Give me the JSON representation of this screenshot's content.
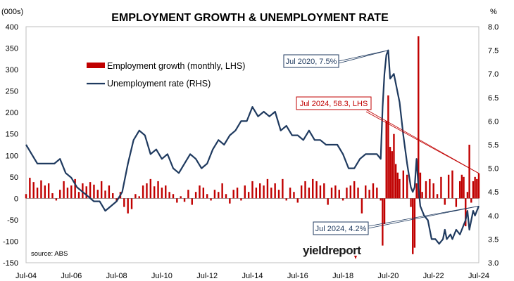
{
  "chart_data": {
    "type": "bar+line",
    "title": "EMPLOYMENT GROWTH & UNEMPLOYMENT RATE",
    "left_unit": "(000s)",
    "right_unit": "%",
    "ylim_left": [
      -150,
      400
    ],
    "ylim_right": [
      3.0,
      8.0
    ],
    "left_ticks": [
      "400",
      "350",
      "300",
      "250",
      "200",
      "150",
      "100",
      "50",
      "0",
      "-50",
      "-100",
      "-150"
    ],
    "right_ticks": [
      "8.0",
      "7.5",
      "7.0",
      "6.5",
      "6.0",
      "5.5",
      "5.0",
      "4.5",
      "4.0",
      "3.5",
      "3.0"
    ],
    "x_ticks": [
      "Jul-04",
      "Jul-06",
      "Jul-08",
      "Jul-10",
      "Jul-12",
      "Jul-14",
      "Jul-16",
      "Jul-18",
      "Jul-20",
      "Jul-22",
      "Jul-24"
    ],
    "x_range": [
      "Jul-04",
      "Jul-24"
    ],
    "grid": false,
    "legend_position": "top-left",
    "series": [
      {
        "name": "Employment growth (monthly, LHS)",
        "type": "bar",
        "axis": "left",
        "color": "#c00000",
        "points": [
          [
            "Jul-04",
            10
          ],
          [
            "Sep-04",
            48
          ],
          [
            "Nov-04",
            38
          ],
          [
            "Jan-05",
            25
          ],
          [
            "Mar-05",
            42
          ],
          [
            "May-05",
            30
          ],
          [
            "Jul-05",
            35
          ],
          [
            "Sep-05",
            12
          ],
          [
            "Nov-05",
            -5
          ],
          [
            "Jan-06",
            20
          ],
          [
            "Mar-06",
            40
          ],
          [
            "May-06",
            25
          ],
          [
            "Jul-06",
            30
          ],
          [
            "Sep-06",
            45
          ],
          [
            "Nov-06",
            15
          ],
          [
            "Jan-07",
            35
          ],
          [
            "Mar-07",
            28
          ],
          [
            "May-07",
            38
          ],
          [
            "Jul-07",
            32
          ],
          [
            "Sep-07",
            20
          ],
          [
            "Nov-07",
            40
          ],
          [
            "Jan-08",
            18
          ],
          [
            "Mar-08",
            30
          ],
          [
            "May-08",
            12
          ],
          [
            "Jul-08",
            -8
          ],
          [
            "Sep-08",
            15
          ],
          [
            "Nov-08",
            -20
          ],
          [
            "Jan-09",
            -35
          ],
          [
            "Mar-09",
            -25
          ],
          [
            "May-09",
            10
          ],
          [
            "Jul-09",
            5
          ],
          [
            "Sep-09",
            30
          ],
          [
            "Nov-09",
            35
          ],
          [
            "Jan-10",
            45
          ],
          [
            "Mar-10",
            28
          ],
          [
            "May-10",
            40
          ],
          [
            "Jul-10",
            25
          ],
          [
            "Sep-10",
            30
          ],
          [
            "Nov-10",
            15
          ],
          [
            "Jan-11",
            10
          ],
          [
            "Mar-11",
            -10
          ],
          [
            "May-11",
            5
          ],
          [
            "Jul-11",
            -8
          ],
          [
            "Sep-11",
            20
          ],
          [
            "Nov-11",
            -15
          ],
          [
            "Jan-12",
            15
          ],
          [
            "Mar-12",
            30
          ],
          [
            "May-12",
            25
          ],
          [
            "Jul-12",
            10
          ],
          [
            "Sep-12",
            -5
          ],
          [
            "Nov-12",
            20
          ],
          [
            "Jan-13",
            15
          ],
          [
            "Mar-13",
            35
          ],
          [
            "May-13",
            10
          ],
          [
            "Jul-13",
            -12
          ],
          [
            "Sep-13",
            20
          ],
          [
            "Nov-13",
            25
          ],
          [
            "Jan-14",
            -5
          ],
          [
            "Mar-14",
            30
          ],
          [
            "May-14",
            15
          ],
          [
            "Jul-14",
            40
          ],
          [
            "Sep-14",
            25
          ],
          [
            "Nov-14",
            35
          ],
          [
            "Jan-15",
            30
          ],
          [
            "Mar-15",
            45
          ],
          [
            "May-15",
            25
          ],
          [
            "Jul-15",
            35
          ],
          [
            "Sep-15",
            20
          ],
          [
            "Nov-15",
            45
          ],
          [
            "Jan-16",
            -5
          ],
          [
            "Mar-16",
            25
          ],
          [
            "May-16",
            15
          ],
          [
            "Jul-16",
            -10
          ],
          [
            "Sep-16",
            30
          ],
          [
            "Nov-16",
            40
          ],
          [
            "Jan-17",
            25
          ],
          [
            "Mar-17",
            45
          ],
          [
            "May-17",
            40
          ],
          [
            "Jul-17",
            30
          ],
          [
            "Sep-17",
            35
          ],
          [
            "Nov-17",
            -15
          ],
          [
            "Jan-18",
            25
          ],
          [
            "Mar-18",
            30
          ],
          [
            "May-18",
            20
          ],
          [
            "Jul-18",
            -5
          ],
          [
            "Sep-18",
            25
          ],
          [
            "Nov-18",
            30
          ],
          [
            "Jan-19",
            40
          ],
          [
            "Mar-19",
            25
          ],
          [
            "May-19",
            -35
          ],
          [
            "Jul-19",
            30
          ],
          [
            "Sep-19",
            20
          ],
          [
            "Nov-19",
            35
          ],
          [
            "Jan-20",
            25
          ],
          [
            "Mar-20",
            -5
          ],
          [
            "Apr-20",
            -110
          ],
          [
            "May-20",
            -60
          ],
          [
            "Jun-20",
            180
          ],
          [
            "Jul-20",
            240
          ],
          [
            "Aug-20",
            120
          ],
          [
            "Sep-20",
            110
          ],
          [
            "Oct-20",
            150
          ],
          [
            "Nov-20",
            80
          ],
          [
            "Dec-20",
            60
          ],
          [
            "Jan-21",
            45
          ],
          [
            "Mar-21",
            65
          ],
          [
            "May-21",
            55
          ],
          [
            "Jul-21",
            -20
          ],
          [
            "Aug-21",
            -130
          ],
          [
            "Sep-21",
            -115
          ],
          [
            "Oct-21",
            35
          ],
          [
            "Nov-21",
            378
          ],
          [
            "Dec-21",
            60
          ],
          [
            "Jan-22",
            15
          ],
          [
            "Mar-22",
            40
          ],
          [
            "May-22",
            45
          ],
          [
            "Jul-22",
            35
          ],
          [
            "Sep-22",
            10
          ],
          [
            "Nov-22",
            50
          ],
          [
            "Jan-23",
            -15
          ],
          [
            "Mar-23",
            55
          ],
          [
            "May-23",
            65
          ],
          [
            "Jul-23",
            -20
          ],
          [
            "Sep-23",
            40
          ],
          [
            "Oct-23",
            55
          ],
          [
            "Nov-23",
            50
          ],
          [
            "Dec-23",
            -65
          ],
          [
            "Jan-24",
            15
          ],
          [
            "Feb-24",
            125
          ],
          [
            "Mar-24",
            -10
          ],
          [
            "Apr-24",
            40
          ],
          [
            "May-24",
            50
          ],
          [
            "Jun-24",
            45
          ],
          [
            "Jul-24",
            58.3
          ]
        ]
      },
      {
        "name": "Unemployment rate (RHS)",
        "type": "line",
        "axis": "right",
        "color": "#1f3a5f",
        "points": [
          [
            "Jul-04",
            5.5
          ],
          [
            "Oct-04",
            5.3
          ],
          [
            "Jan-05",
            5.1
          ],
          [
            "Apr-05",
            5.1
          ],
          [
            "Jul-05",
            5.1
          ],
          [
            "Oct-05",
            5.1
          ],
          [
            "Jan-06",
            5.2
          ],
          [
            "Apr-06",
            4.9
          ],
          [
            "Jul-06",
            4.8
          ],
          [
            "Oct-06",
            4.6
          ],
          [
            "Jan-07",
            4.5
          ],
          [
            "Apr-07",
            4.4
          ],
          [
            "Jul-07",
            4.3
          ],
          [
            "Oct-07",
            4.3
          ],
          [
            "Jan-08",
            4.1
          ],
          [
            "Apr-08",
            4.2
          ],
          [
            "Jul-08",
            4.3
          ],
          [
            "Oct-08",
            4.5
          ],
          [
            "Jan-09",
            5.1
          ],
          [
            "Apr-09",
            5.6
          ],
          [
            "Jul-09",
            5.8
          ],
          [
            "Oct-09",
            5.7
          ],
          [
            "Jan-10",
            5.3
          ],
          [
            "Apr-10",
            5.4
          ],
          [
            "Jul-10",
            5.2
          ],
          [
            "Oct-10",
            5.3
          ],
          [
            "Jan-11",
            5.0
          ],
          [
            "Apr-11",
            4.9
          ],
          [
            "Jul-11",
            5.1
          ],
          [
            "Oct-11",
            5.3
          ],
          [
            "Jan-12",
            5.2
          ],
          [
            "Apr-12",
            5.0
          ],
          [
            "Jul-12",
            5.1
          ],
          [
            "Oct-12",
            5.4
          ],
          [
            "Jan-13",
            5.6
          ],
          [
            "Apr-13",
            5.5
          ],
          [
            "Jul-13",
            5.7
          ],
          [
            "Oct-13",
            5.8
          ],
          [
            "Jan-14",
            6.0
          ],
          [
            "Apr-14",
            6.0
          ],
          [
            "Jul-14",
            6.3
          ],
          [
            "Oct-14",
            6.1
          ],
          [
            "Jan-15",
            6.2
          ],
          [
            "Apr-15",
            6.1
          ],
          [
            "Jul-15",
            6.2
          ],
          [
            "Oct-15",
            5.8
          ],
          [
            "Jan-16",
            5.9
          ],
          [
            "Apr-16",
            5.7
          ],
          [
            "Jul-16",
            5.7
          ],
          [
            "Oct-16",
            5.6
          ],
          [
            "Jan-17",
            5.8
          ],
          [
            "Apr-17",
            5.6
          ],
          [
            "Jul-17",
            5.6
          ],
          [
            "Oct-17",
            5.5
          ],
          [
            "Jan-18",
            5.5
          ],
          [
            "Apr-18",
            5.5
          ],
          [
            "Jul-18",
            5.3
          ],
          [
            "Oct-18",
            5.0
          ],
          [
            "Jan-19",
            5.0
          ],
          [
            "Apr-19",
            5.2
          ],
          [
            "Jul-19",
            5.3
          ],
          [
            "Oct-19",
            5.3
          ],
          [
            "Jan-20",
            5.3
          ],
          [
            "Mar-20",
            5.2
          ],
          [
            "Apr-20",
            6.3
          ],
          [
            "May-20",
            7.0
          ],
          [
            "Jun-20",
            7.4
          ],
          [
            "Jul-20",
            7.5
          ],
          [
            "Aug-20",
            6.9
          ],
          [
            "Oct-20",
            7.0
          ],
          [
            "Nov-20",
            6.8
          ],
          [
            "Dec-20",
            6.6
          ],
          [
            "Jan-21",
            6.4
          ],
          [
            "Mar-21",
            5.7
          ],
          [
            "May-21",
            5.1
          ],
          [
            "Jul-21",
            4.6
          ],
          [
            "Aug-21",
            4.5
          ],
          [
            "Sep-21",
            4.6
          ],
          [
            "Oct-21",
            5.2
          ],
          [
            "Nov-21",
            4.6
          ],
          [
            "Dec-21",
            4.2
          ],
          [
            "Feb-22",
            4.0
          ],
          [
            "Apr-22",
            3.9
          ],
          [
            "Jun-22",
            3.5
          ],
          [
            "Aug-22",
            3.5
          ],
          [
            "Oct-22",
            3.4
          ],
          [
            "Dec-22",
            3.5
          ],
          [
            "Jan-23",
            3.7
          ],
          [
            "Feb-23",
            3.5
          ],
          [
            "Apr-23",
            3.6
          ],
          [
            "May-23",
            3.5
          ],
          [
            "Jul-23",
            3.7
          ],
          [
            "Sep-23",
            3.6
          ],
          [
            "Oct-23",
            3.7
          ],
          [
            "Dec-23",
            3.9
          ],
          [
            "Jan-24",
            4.1
          ],
          [
            "Feb-24",
            3.7
          ],
          [
            "Apr-24",
            4.1
          ],
          [
            "May-24",
            4.0
          ],
          [
            "Jun-24",
            4.1
          ],
          [
            "Jul-24",
            4.2
          ]
        ]
      }
    ],
    "annotations": [
      {
        "text": "Jul 2020, 7.5%",
        "target": [
          "Jul-20",
          7.5
        ],
        "axis": "right",
        "color": "#1f3a5f"
      },
      {
        "text": "Jul 2024, 58.3, LHS",
        "target": [
          "Jul-24",
          58.3
        ],
        "axis": "left",
        "color": "#c00000"
      },
      {
        "text": "Jul 2024, 4.2%",
        "target": [
          "Jul-24",
          4.2
        ],
        "axis": "right",
        "color": "#1f3a5f"
      }
    ],
    "source": "source: ABS",
    "logo": "yieldreport"
  }
}
